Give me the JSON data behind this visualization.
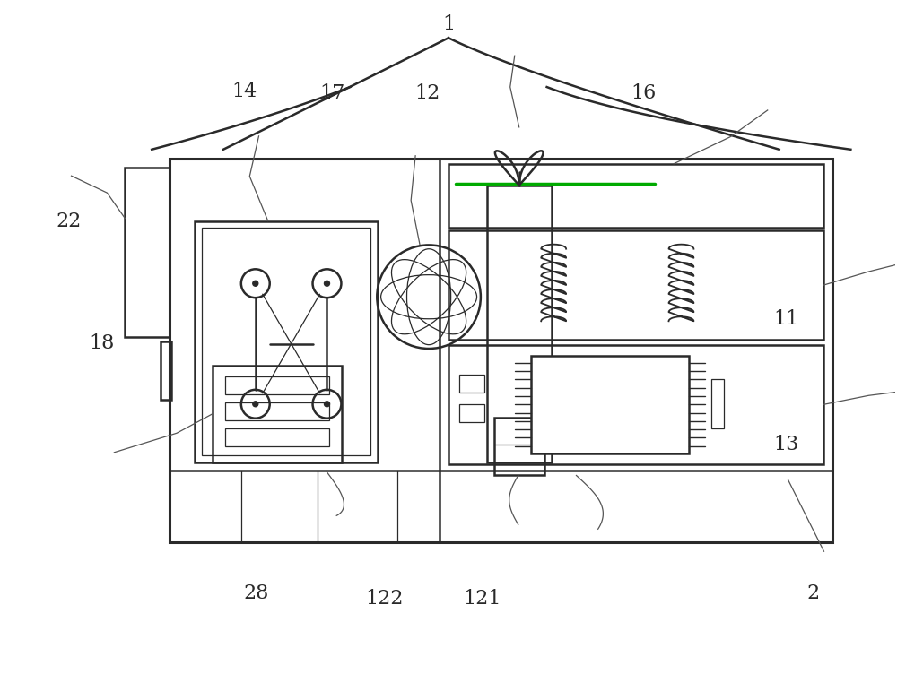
{
  "bg_color": "#ffffff",
  "line_color": "#2a2a2a",
  "lw_main": 1.8,
  "lw_thin": 0.9,
  "lw_leader": 0.9,
  "figsize": [
    10.0,
    7.71
  ],
  "dpi": 100,
  "green_color": "#00aa00",
  "leader_color": "#555555"
}
